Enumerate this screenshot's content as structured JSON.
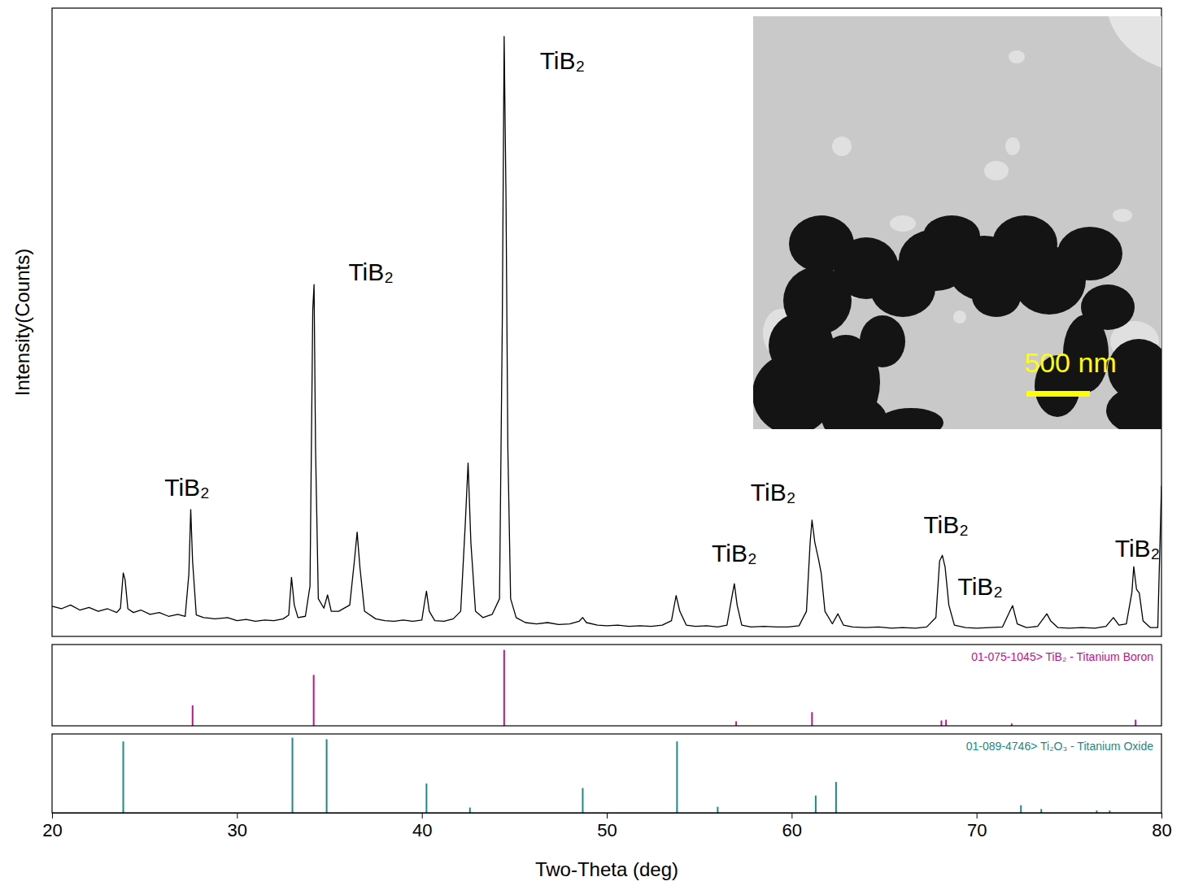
{
  "chart_data": [
    {
      "type": "line",
      "y_label": "Intensity(Counts)",
      "color": "#000000",
      "tick_labels": false,
      "xlim": [
        20,
        80
      ],
      "ylim": [
        0,
        1000
      ],
      "x": [
        20.0,
        20.5,
        21.0,
        21.5,
        22.0,
        22.5,
        23.0,
        23.5,
        23.7,
        23.85,
        23.95,
        24.1,
        24.4,
        24.8,
        25.3,
        25.8,
        26.3,
        26.8,
        27.2,
        27.4,
        27.5,
        27.6,
        27.8,
        28.2,
        28.8,
        29.5,
        30.0,
        30.5,
        31.0,
        31.5,
        32.0,
        32.5,
        32.8,
        32.95,
        33.1,
        33.3,
        33.7,
        33.95,
        34.1,
        34.17,
        34.25,
        34.4,
        34.7,
        34.9,
        35.1,
        35.5,
        36.1,
        36.35,
        36.5,
        36.65,
        36.9,
        37.5,
        38.0,
        38.5,
        39.0,
        39.5,
        40.0,
        40.15,
        40.25,
        40.4,
        40.7,
        41.2,
        41.7,
        42.1,
        42.35,
        42.5,
        42.65,
        42.9,
        43.3,
        43.8,
        44.2,
        44.35,
        44.45,
        44.55,
        44.65,
        44.8,
        45.1,
        45.6,
        46.2,
        46.8,
        47.4,
        48.0,
        48.5,
        48.7,
        48.9,
        49.5,
        50.0,
        50.6,
        51.2,
        51.8,
        52.4,
        53.0,
        53.5,
        53.75,
        53.95,
        54.3,
        54.8,
        55.4,
        56.0,
        56.5,
        56.75,
        56.9,
        57.05,
        57.3,
        57.8,
        58.5,
        59.2,
        59.8,
        60.4,
        60.8,
        61.0,
        61.1,
        61.25,
        61.45,
        61.6,
        61.8,
        62.2,
        62.5,
        62.8,
        63.3,
        64.0,
        64.7,
        65.4,
        66.0,
        66.7,
        67.3,
        67.8,
        68.0,
        68.15,
        68.3,
        68.5,
        68.8,
        69.4,
        70.0,
        70.7,
        71.4,
        71.8,
        71.95,
        72.2,
        72.7,
        73.3,
        73.65,
        73.8,
        74.0,
        74.4,
        75.0,
        75.7,
        76.4,
        77.0,
        77.4,
        77.7,
        78.1,
        78.4,
        78.5,
        78.65,
        78.8,
        79.0,
        79.4,
        79.8,
        80.0
      ],
      "values": [
        48,
        44,
        50,
        42,
        46,
        40,
        44,
        38,
        45,
        101,
        90,
        44,
        38,
        42,
        35,
        38,
        32,
        35,
        32,
        100,
        202,
        120,
        34,
        30,
        28,
        30,
        25,
        27,
        24,
        26,
        25,
        28,
        34,
        94,
        50,
        30,
        32,
        80,
        520,
        560,
        300,
        60,
        45,
        66,
        40,
        40,
        50,
        120,
        166,
        110,
        40,
        28,
        25,
        24,
        26,
        24,
        26,
        55,
        72,
        40,
        25,
        24,
        28,
        40,
        180,
        276,
        150,
        40,
        30,
        35,
        60,
        500,
        955,
        700,
        300,
        60,
        30,
        22,
        20,
        22,
        19,
        20,
        24,
        30,
        22,
        18,
        17,
        18,
        16,
        17,
        16,
        18,
        25,
        65,
        40,
        18,
        16,
        17,
        15,
        18,
        60,
        84,
        50,
        18,
        15,
        16,
        15,
        15,
        17,
        40,
        150,
        185,
        150,
        123,
        100,
        40,
        20,
        36,
        18,
        15,
        14,
        15,
        13,
        14,
        13,
        15,
        30,
        120,
        129,
        110,
        50,
        18,
        14,
        13,
        14,
        15,
        40,
        49,
        20,
        14,
        16,
        30,
        36,
        25,
        14,
        13,
        14,
        13,
        16,
        30,
        18,
        20,
        70,
        111,
        75,
        69,
        25,
        14,
        14,
        240
      ],
      "annotations": [
        {
          "text": "TiB₂",
          "x": 27.3,
          "y": 237
        },
        {
          "text": "TiB₂",
          "x": 37.25,
          "y": 580
        },
        {
          "text": "TiB₂",
          "x": 47.6,
          "y": 916
        },
        {
          "text": "TiB₂",
          "x": 59.0,
          "y": 230
        },
        {
          "text": "TiB₂",
          "x": 56.9,
          "y": 133
        },
        {
          "text": "TiB₂",
          "x": 68.35,
          "y": 178
        },
        {
          "text": "TiB₂",
          "x": 70.2,
          "y": 79
        },
        {
          "text": "TiB₂",
          "x": 78.7,
          "y": 140
        }
      ]
    },
    {
      "type": "stem",
      "title": "01-075-1045> TiB₂ - Titanium Boron",
      "color": "#c0148c",
      "tick_labels": false,
      "xlim": [
        20,
        80
      ],
      "ylim": [
        0,
        107
      ],
      "x": [
        27.6,
        34.15,
        44.45,
        57.0,
        61.1,
        68.1,
        68.35,
        71.9,
        78.6
      ],
      "values": [
        27,
        67,
        100,
        6,
        18,
        7,
        8,
        3,
        8
      ]
    },
    {
      "type": "stem",
      "title": "01-089-4746> Ti₂O₃ - Titanium Oxide",
      "color": "#1a8a8a",
      "tick_labels": "x",
      "x_label": "Two-Theta (deg)",
      "xlim": [
        20,
        80
      ],
      "ylim": [
        0,
        105
      ],
      "xticks": [
        20,
        30,
        40,
        50,
        60,
        70,
        80
      ],
      "x": [
        23.85,
        33.0,
        34.85,
        40.25,
        42.6,
        48.7,
        53.8,
        56.0,
        61.3,
        62.4,
        72.4,
        73.5,
        76.5,
        77.2
      ],
      "values": [
        95,
        100,
        98,
        39,
        7,
        33,
        95,
        8,
        23,
        41,
        10,
        5,
        3,
        3
      ]
    }
  ],
  "image": {
    "scale_bar_label": "500 nm"
  }
}
